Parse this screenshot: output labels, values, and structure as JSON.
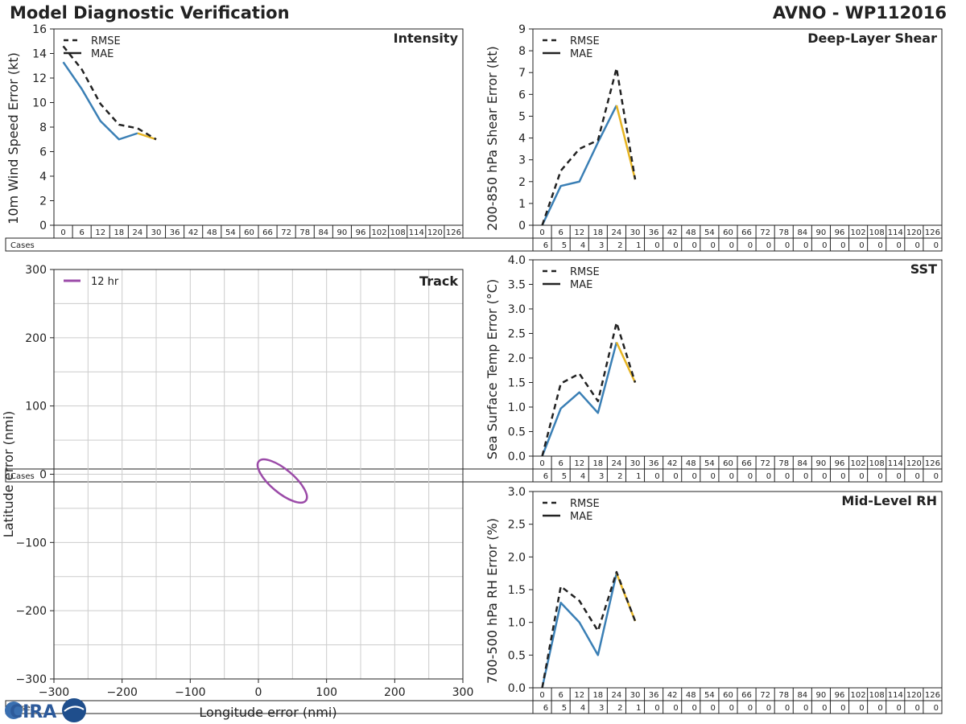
{
  "header": {
    "title": "Model Diagnostic Verification",
    "model": "AVNO - WP112016"
  },
  "logo": {
    "text": "CIRA",
    "icon": "cira-logo-icon"
  },
  "colors": {
    "mae": "#3a7fb5",
    "highlight": "#e6b422",
    "rmse": "#222222",
    "track": "#9b4ba8",
    "grid": "#cccccc"
  },
  "table": {
    "hours": [
      "0",
      "6",
      "12",
      "18",
      "24",
      "30",
      "36",
      "42",
      "48",
      "54",
      "60",
      "66",
      "72",
      "78",
      "84",
      "90",
      "96",
      "102",
      "108",
      "114",
      "120",
      "126"
    ],
    "cases_label": "Cases",
    "cases": [
      "6",
      "5",
      "4",
      "3",
      "2",
      "1",
      "0",
      "0",
      "0",
      "0",
      "0",
      "0",
      "0",
      "0",
      "0",
      "0",
      "0",
      "0",
      "0",
      "0",
      "0",
      "0"
    ]
  },
  "chart_data": [
    {
      "id": "intensity",
      "type": "line",
      "title": "Intensity",
      "ylabel": "10m Wind Speed Error (kt)",
      "ylim": [
        0,
        16
      ],
      "yticks": [
        "0",
        "2",
        "4",
        "6",
        "8",
        "10",
        "12",
        "14",
        "16"
      ],
      "legend": "top-left",
      "x": [
        0,
        6,
        12,
        18,
        24,
        30
      ],
      "series": [
        {
          "name": "RMSE",
          "style": "dashed",
          "values": [
            14.6,
            12.7,
            9.9,
            8.2,
            7.9,
            7.0
          ]
        },
        {
          "name": "MAE",
          "style": "solid",
          "values": [
            13.3,
            11.1,
            8.5,
            7.0,
            7.5,
            7.0
          ]
        }
      ]
    },
    {
      "id": "shear",
      "type": "line",
      "title": "Deep-Layer Shear",
      "ylabel": "200-850 hPa Shear Error (kt)",
      "ylim": [
        0,
        9
      ],
      "yticks": [
        "0",
        "1",
        "2",
        "3",
        "4",
        "5",
        "6",
        "7",
        "8",
        "9"
      ],
      "legend": "top-left",
      "x": [
        0,
        6,
        12,
        18,
        24,
        30
      ],
      "series": [
        {
          "name": "RMSE",
          "style": "dashed",
          "values": [
            0.0,
            2.5,
            3.5,
            3.9,
            7.2,
            2.1
          ]
        },
        {
          "name": "MAE",
          "style": "solid",
          "values": [
            0.0,
            1.8,
            2.0,
            3.8,
            5.5,
            2.1
          ]
        }
      ]
    },
    {
      "id": "sst",
      "type": "line",
      "title": "SST",
      "ylabel": "Sea Surface Temp Error (°C)",
      "ylim": [
        0,
        4
      ],
      "yticks": [
        "0.0",
        "0.5",
        "1.0",
        "1.5",
        "2.0",
        "2.5",
        "3.0",
        "3.5",
        "4.0"
      ],
      "legend": "top-left",
      "x": [
        0,
        6,
        12,
        18,
        24,
        30
      ],
      "series": [
        {
          "name": "RMSE",
          "style": "dashed",
          "values": [
            0.0,
            1.48,
            1.68,
            1.12,
            2.72,
            1.5
          ]
        },
        {
          "name": "MAE",
          "style": "solid",
          "values": [
            0.0,
            0.97,
            1.3,
            0.88,
            2.32,
            1.5
          ]
        }
      ]
    },
    {
      "id": "rh",
      "type": "line",
      "title": "Mid-Level RH",
      "ylabel": "700-500 hPa RH Error (%)",
      "ylim": [
        0,
        3
      ],
      "yticks": [
        "0.0",
        "0.5",
        "1.0",
        "1.5",
        "2.0",
        "2.5",
        "3.0"
      ],
      "legend": "top-left",
      "x": [
        0,
        6,
        12,
        18,
        24,
        30
      ],
      "series": [
        {
          "name": "RMSE",
          "style": "dashed",
          "values": [
            0.0,
            1.55,
            1.33,
            0.87,
            1.77,
            1.02
          ]
        },
        {
          "name": "MAE",
          "style": "solid",
          "values": [
            0.0,
            1.3,
            1.0,
            0.5,
            1.75,
            1.02
          ]
        }
      ]
    },
    {
      "id": "track",
      "type": "scatter",
      "title": "Track",
      "xlabel": "Longitude error (nmi)",
      "ylabel": "Latitude error (nmi)",
      "xlim": [
        -300,
        300
      ],
      "ylim": [
        -300,
        300
      ],
      "xticks": [
        "−300",
        "−200",
        "−100",
        "0",
        "100",
        "200",
        "300"
      ],
      "yticks": [
        "−300",
        "−200",
        "−100",
        "0",
        "100",
        "200",
        "300"
      ],
      "grid": true,
      "legend": "top-left",
      "series": [
        {
          "name": "12 hr",
          "ellipse": {
            "center_x": 35,
            "center_y": -10,
            "semi_major": 45,
            "semi_minor": 17,
            "rotation_deg": -40
          }
        }
      ]
    }
  ]
}
